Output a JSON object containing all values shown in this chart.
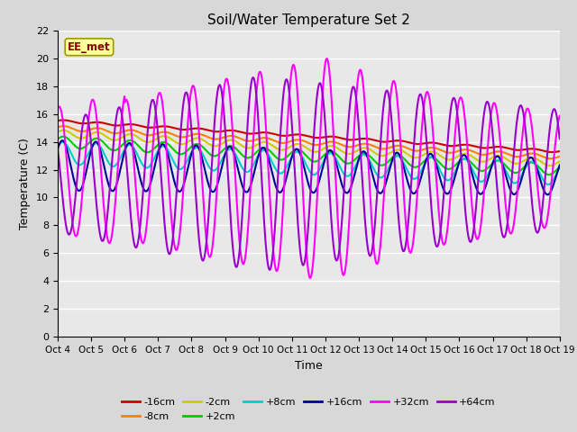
{
  "title": "Soil/Water Temperature Set 2",
  "xlabel": "Time",
  "ylabel": "Temperature (C)",
  "annotation": "EE_met",
  "annotation_color": "#8B0000",
  "annotation_bg": "#FFFF99",
  "xlim": [
    0,
    15
  ],
  "ylim": [
    0,
    22
  ],
  "yticks": [
    0,
    2,
    4,
    6,
    8,
    10,
    12,
    14,
    16,
    18,
    20,
    22
  ],
  "xtick_labels": [
    "Oct 4",
    "Oct 5",
    "Oct 6",
    "Oct 7",
    "Oct 8",
    "Oct 9",
    "Oct 10",
    "Oct 11",
    "Oct 12",
    "Oct 13",
    "Oct 14",
    "Oct 15",
    "Oct 16",
    "Oct 17",
    "Oct 18",
    "Oct 19"
  ],
  "fig_bg": "#D8D8D8",
  "plot_bg": "#E8E8E8",
  "series": [
    {
      "label": "-16cm",
      "color": "#CC0000",
      "lw": 1.5
    },
    {
      "label": "-8cm",
      "color": "#FF8000",
      "lw": 1.5
    },
    {
      "label": "-2cm",
      "color": "#CCCC00",
      "lw": 1.5
    },
    {
      "label": "+2cm",
      "color": "#00CC00",
      "lw": 1.5
    },
    {
      "label": "+8cm",
      "color": "#00CCCC",
      "lw": 1.5
    },
    {
      "label": "+16cm",
      "color": "#000099",
      "lw": 1.5
    },
    {
      "label": "+32cm",
      "color": "#FF00FF",
      "lw": 1.5
    },
    {
      "label": "+64cm",
      "color": "#9900CC",
      "lw": 1.5
    }
  ],
  "grid_color": "#FFFFFF",
  "title_fontsize": 11
}
